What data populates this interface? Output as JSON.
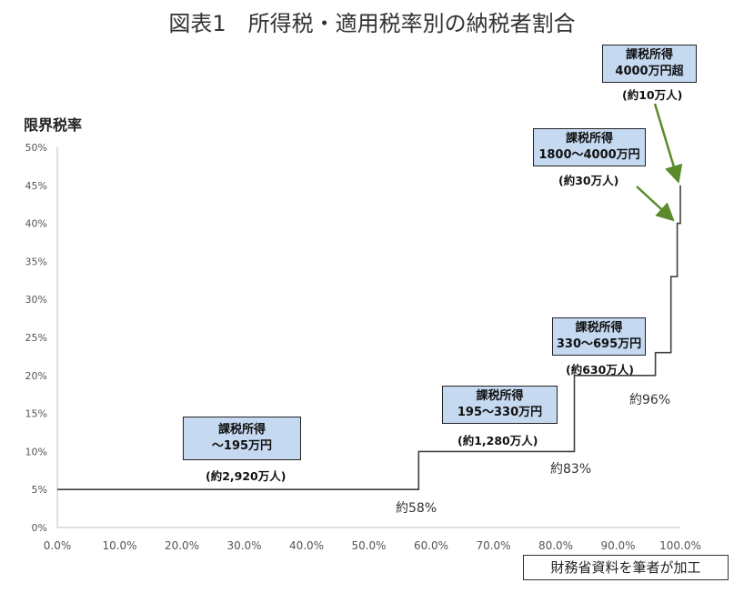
{
  "chart_data": {
    "type": "line",
    "title": "図表1　所得税・適用税率別の納税者割合",
    "ylabel": "限界税率",
    "xlabel": "",
    "xlim": [
      0,
      100
    ],
    "ylim": [
      0,
      50
    ],
    "x_ticks": [
      "0.0%",
      "10.0%",
      "20.0%",
      "30.0%",
      "40.0%",
      "50.0%",
      "60.0%",
      "70.0%",
      "80.0%",
      "90.0%",
      "100.0%"
    ],
    "y_ticks": [
      "0%",
      "5%",
      "10%",
      "15%",
      "20%",
      "25%",
      "30%",
      "35%",
      "40%",
      "45%",
      "50%"
    ],
    "series": [
      {
        "x": [
          0,
          58,
          58,
          83,
          83,
          96,
          96,
          98.5,
          98.5,
          99.5,
          99.5,
          100,
          100
        ],
        "y": [
          5,
          5,
          10,
          10,
          20,
          20,
          23,
          23,
          33,
          33,
          40,
          40,
          45
        ]
      }
    ],
    "annotations": {
      "bracket1": {
        "label1": "課税所得",
        "label2": "～195万円",
        "count": "(約2,920万人)"
      },
      "bracket2": {
        "label1": "課税所得",
        "label2": "195～330万円",
        "count": "(約1,280万人)"
      },
      "bracket3": {
        "label1": "課税所得",
        "label2": "330～695万円",
        "count": "(約630万人)"
      },
      "bracket4": {
        "label1": "課税所得",
        "label2": "1800～4000万円",
        "count": "(約30万人)"
      },
      "bracket5": {
        "label1": "課税所得",
        "label2": "4000万円超",
        "count": "(約10万人)"
      },
      "pct58": "約58%",
      "pct83": "約83%",
      "pct96": "約96%"
    },
    "source": "財務省資料を筆者が加工",
    "colors": {
      "line": "#404040",
      "box": "#c5d9f1",
      "arrow": "#5a8a2a",
      "grid_axis": "#bfbfbf"
    }
  }
}
